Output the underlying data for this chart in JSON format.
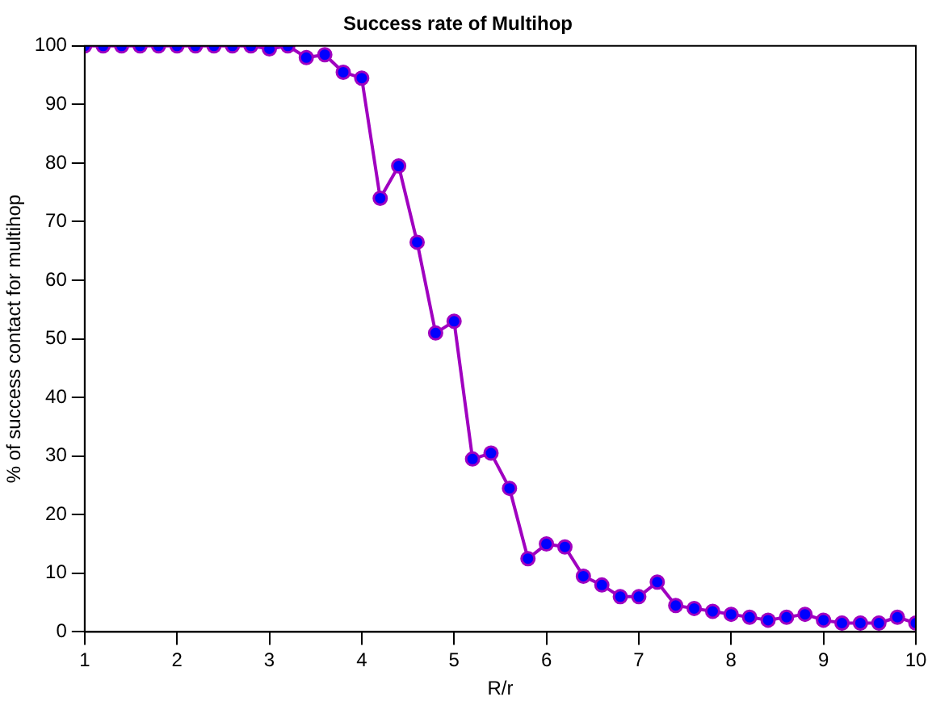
{
  "chart_data": {
    "type": "line",
    "title": "Success rate of Multihop",
    "xlabel": "R/r",
    "ylabel": "% of success contact for multihop",
    "x": [
      1,
      1.2,
      1.4,
      1.6,
      1.8,
      2,
      2.2,
      2.4,
      2.6,
      2.8,
      3,
      3.2,
      3.4,
      3.6,
      3.8,
      4,
      4.2,
      4.4,
      4.6,
      4.8,
      5,
      5.2,
      5.4,
      5.6,
      5.8,
      6,
      6.2,
      6.4,
      6.6,
      6.8,
      7,
      7.2,
      7.4,
      7.6,
      7.8,
      8,
      8.2,
      8.4,
      8.6,
      8.8,
      9,
      9.2,
      9.4,
      9.6,
      9.8,
      10
    ],
    "series": [
      {
        "color": "#a000c0",
        "values": [
          100,
          100,
          100,
          100,
          100,
          100,
          100,
          100,
          100,
          100,
          99.5,
          100,
          98,
          98.5,
          95.5,
          94.5,
          74,
          79.5,
          66.5,
          51,
          53,
          29.5,
          30.5,
          24.5,
          12.5,
          15,
          14.5,
          9.5,
          8,
          6,
          6,
          8.5,
          4.5,
          4,
          3.5,
          3,
          2.5,
          2,
          2.5,
          3,
          2,
          1.5,
          1.5,
          1.5,
          2.5,
          1.5
        ]
      }
    ],
    "xlim": [
      1,
      10
    ],
    "xticks": [
      1,
      2,
      3,
      4,
      5,
      6,
      7,
      8,
      9,
      10
    ],
    "ylim": [
      0,
      100
    ],
    "yticks": [
      0,
      10,
      20,
      30,
      40,
      50,
      60,
      70,
      80,
      90,
      100
    ],
    "grid": false,
    "legend": false,
    "marker": "circle",
    "line_style": "solid"
  }
}
